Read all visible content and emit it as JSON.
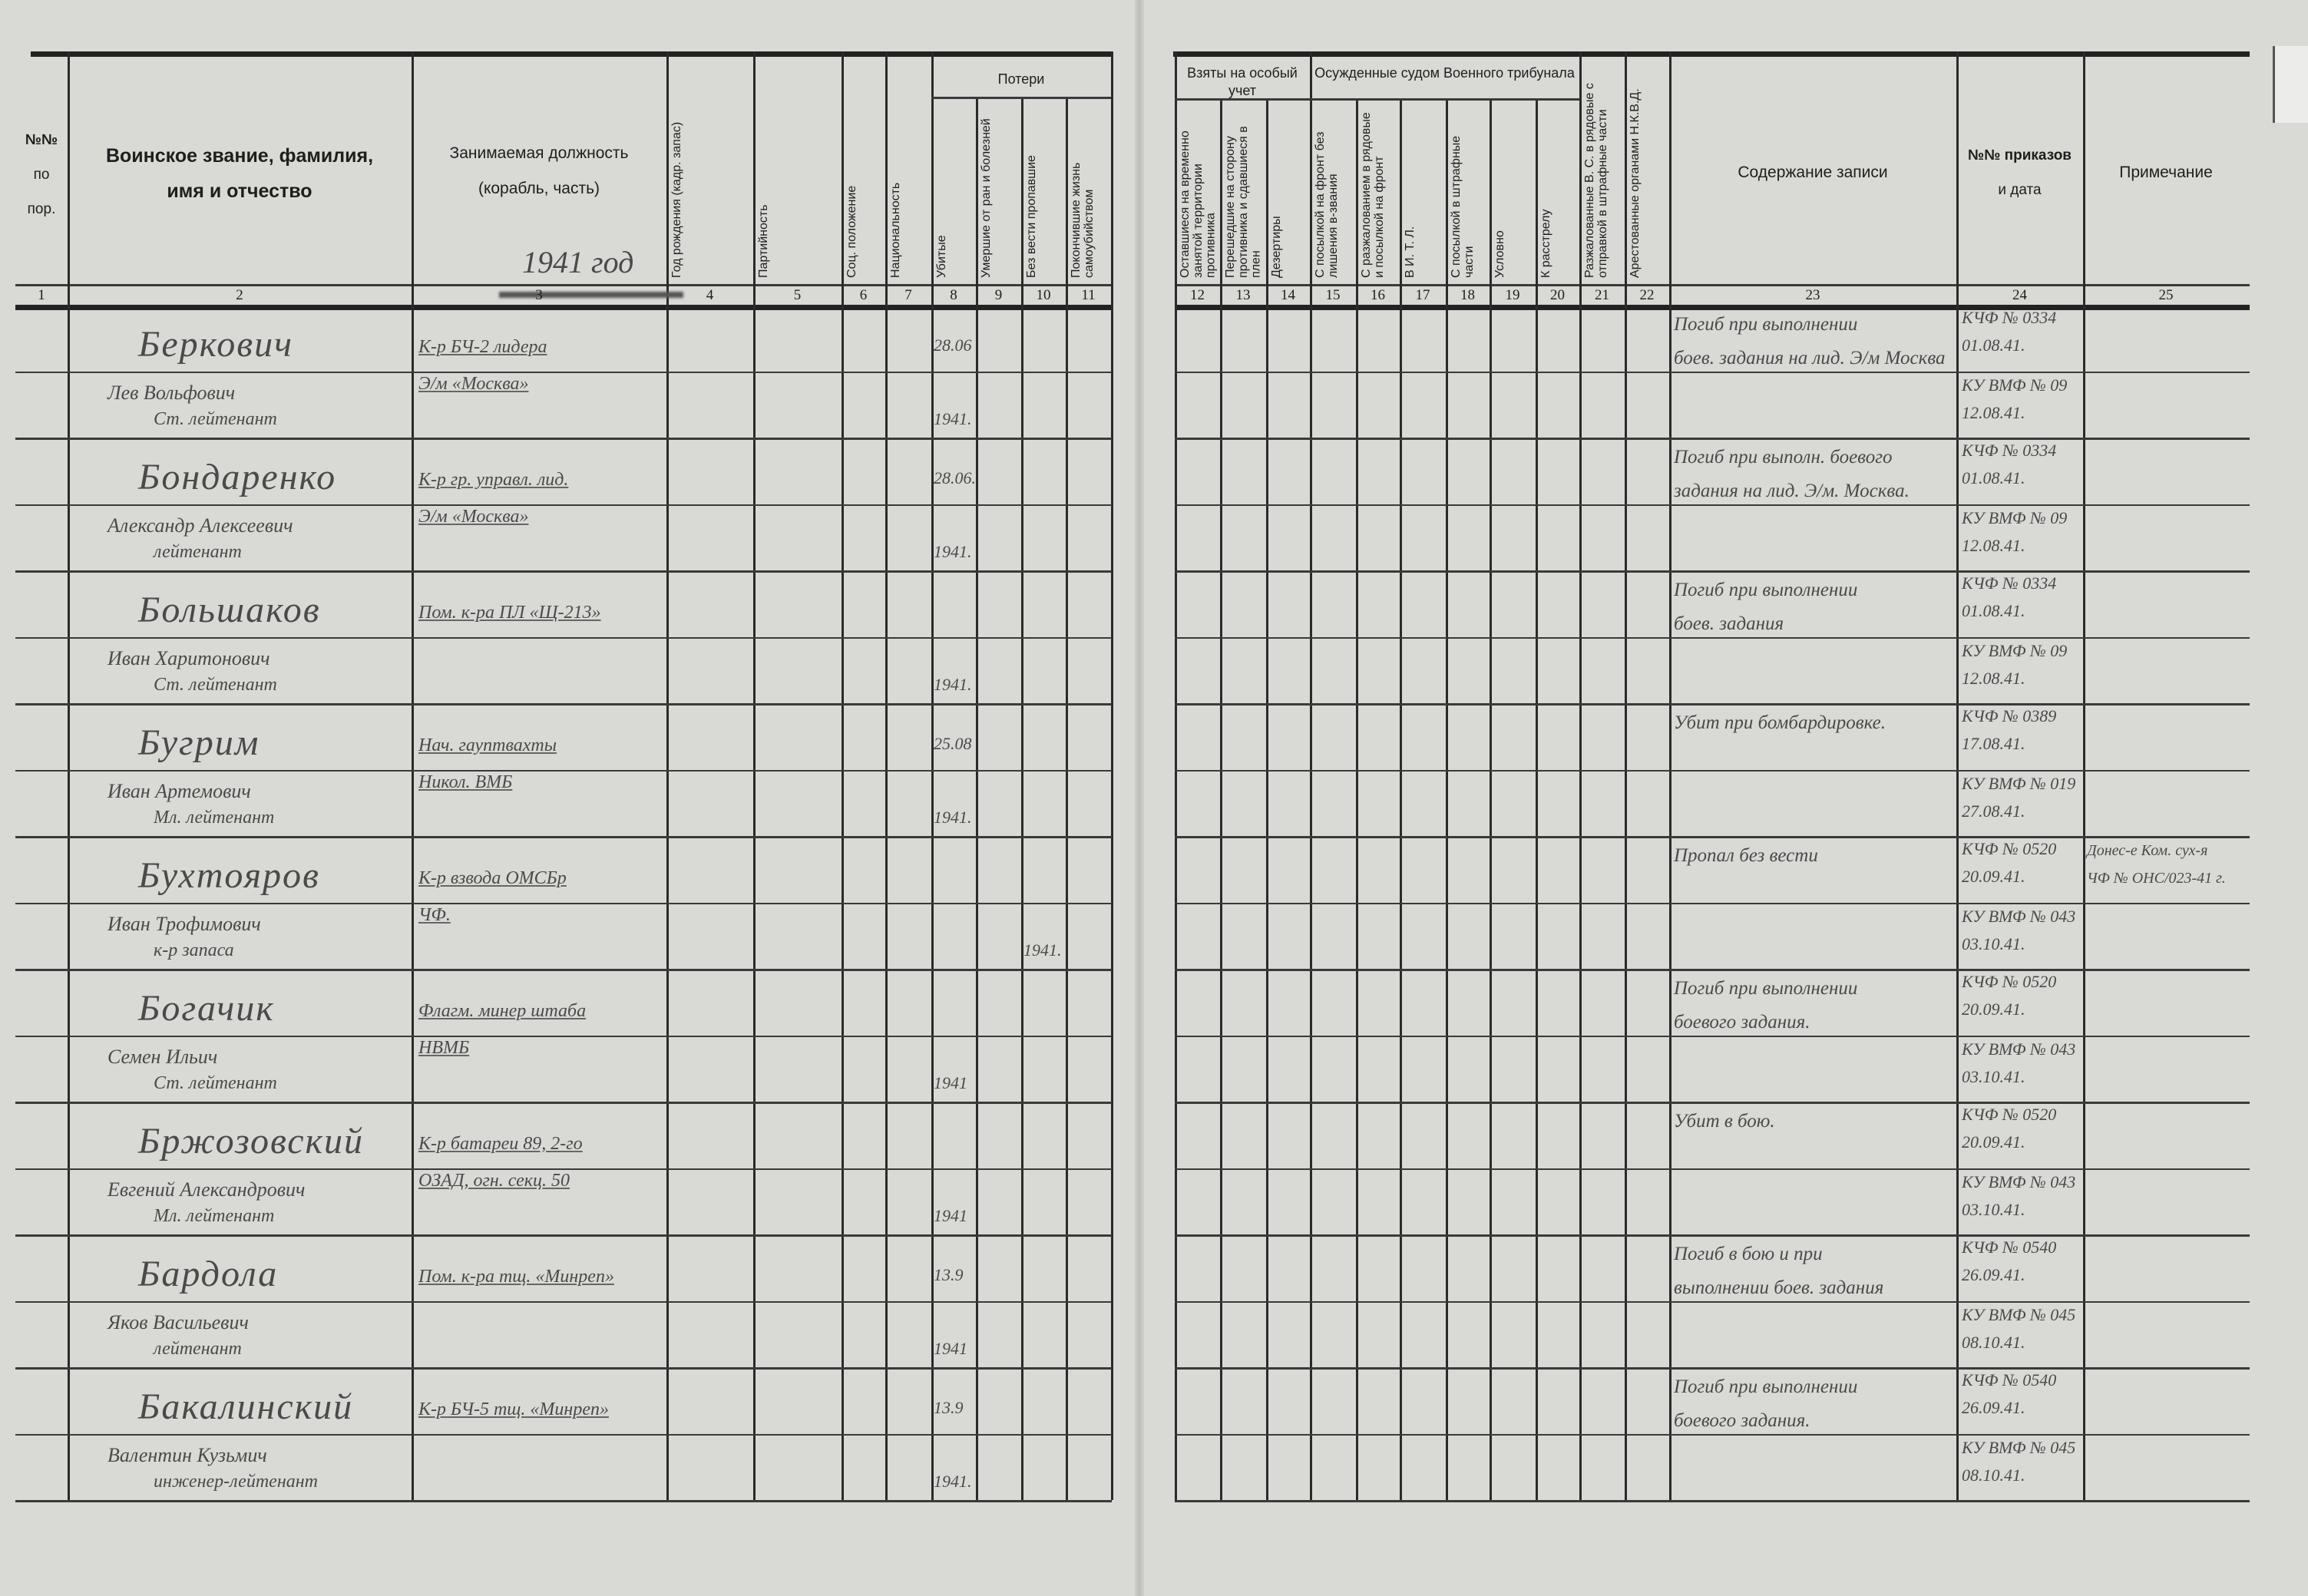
{
  "header": {
    "col1": [
      "№№",
      "по",
      "пор."
    ],
    "col2": [
      "Воинское звание, фамилия,",
      "имя и отчество"
    ],
    "col3": [
      "Занимаемая должность",
      "(корабль, часть)"
    ],
    "year_stamp": "1941 год",
    "col4": "Год рождения (кадр. запас)",
    "col5": "Партийность",
    "col6": "Соц. положение",
    "col7": "Национальность",
    "group_losses": "Потери",
    "col8": "Убитые",
    "col9": "Умершие от ран и болезней",
    "col10": "Без вести пропавшие",
    "col11": "Покончившие жизнь самоубийством",
    "group_special": "Взяты на особый учет",
    "col12": "Оставшиеся на временно занятой территории противника",
    "col13": "Перешедшие на сторону противника и сдавшиеся в плен",
    "col14": "Дезертиры",
    "group_tribunal": "Осужденные судом Военного трибунала",
    "col15": "С посылкой на фронт без лишения в-звания",
    "col16": "С разжалованием в рядовые и посылкой на фронт",
    "col17": "В И. Т. Л.",
    "col18": "С посылкой в штрафные части",
    "col19": "Условно",
    "col20": "К расстрелу",
    "col21": "Разжалованные В. С. в рядовые с отправкой в штрафные части",
    "col22": "Арестованные органами Н.К.В.Д.",
    "col23": "Содержание записи",
    "col24": [
      "№№ приказов",
      "и дата"
    ],
    "col25": "Примечание",
    "numbers": [
      "1",
      "2",
      "3",
      "4",
      "5",
      "6",
      "7",
      "8",
      "9",
      "10",
      "11",
      "12",
      "13",
      "14",
      "15",
      "16",
      "17",
      "18",
      "19",
      "20",
      "21",
      "22",
      "23",
      "24",
      "25"
    ]
  },
  "rows": [
    {
      "surname": "Беркович",
      "name": "Лев Вольфович",
      "rank": "Ст. лейтенант",
      "position": [
        "К-р БЧ-2 лидера",
        "Э/м «Москва»"
      ],
      "loss_col": 8,
      "loss": [
        "28.06",
        "1941."
      ],
      "content": [
        "Погиб при выполнении",
        "боев. задания на лид. Э/м Москва"
      ],
      "order1": [
        "КЧФ № 0334",
        "01.08.41."
      ],
      "order2": [
        "КУ ВМФ № 09",
        "12.08.41."
      ],
      "note": []
    },
    {
      "surname": "Бондаренко",
      "name": "Александр Алексеевич",
      "rank": "лейтенант",
      "position": [
        "К-р гр. управл. лид.",
        "Э/м «Москва»"
      ],
      "loss_col": 8,
      "loss": [
        "28.06.",
        "1941."
      ],
      "content": [
        "Погиб при выполн. боевого",
        "задания на лид. Э/м. Москва."
      ],
      "order1": [
        "КЧФ № 0334",
        "01.08.41."
      ],
      "order2": [
        "КУ ВМФ № 09",
        "12.08.41."
      ],
      "note": []
    },
    {
      "surname": "Большаков",
      "name": "Иван Харитонович",
      "rank": "Ст. лейтенант",
      "position": [
        "Пом. к-ра ПЛ «Щ-213»",
        ""
      ],
      "loss_col": 8,
      "loss": [
        "",
        "1941."
      ],
      "content": [
        "Погиб при выполнении",
        "боев. задания"
      ],
      "order1": [
        "КЧФ № 0334",
        "01.08.41."
      ],
      "order2": [
        "КУ ВМФ № 09",
        "12.08.41."
      ],
      "note": []
    },
    {
      "surname": "Бугрим",
      "name": "Иван Артемович",
      "rank": "Мл. лейтенант",
      "position": [
        "Нач. гауптвахты",
        "Никол. ВМБ"
      ],
      "loss_col": 8,
      "loss": [
        "25.08",
        "1941."
      ],
      "content": [
        "Убит при бомбардировке.",
        ""
      ],
      "order1": [
        "КЧФ № 0389",
        "17.08.41."
      ],
      "order2": [
        "КУ ВМФ № 019",
        "27.08.41."
      ],
      "note": []
    },
    {
      "surname": "Бухтояров",
      "name": "Иван Трофимович",
      "rank": "к-р запаса",
      "position": [
        "К-р взвода ОМСБр",
        "ЧФ."
      ],
      "loss_col": 10,
      "loss": [
        "",
        "1941."
      ],
      "content": [
        "Пропал без вести",
        ""
      ],
      "order1": [
        "КЧФ № 0520",
        "20.09.41."
      ],
      "order2": [
        "КУ ВМФ № 043",
        "03.10.41."
      ],
      "note": [
        "Донес-е Ком. сух-я",
        "ЧФ № ОНС/023-41 г."
      ]
    },
    {
      "surname": "Богачик",
      "name": "Семен Ильич",
      "rank": "Ст. лейтенант",
      "position": [
        "Флагм. минер штаба",
        "НВМБ"
      ],
      "loss_col": 8,
      "loss": [
        "",
        "1941"
      ],
      "content": [
        "Погиб при выполнении",
        "боевого задания."
      ],
      "order1": [
        "КЧФ № 0520",
        "20.09.41."
      ],
      "order2": [
        "КУ ВМФ № 043",
        "03.10.41."
      ],
      "note": []
    },
    {
      "surname": "Бржозовский",
      "name": "Евгений Александрович",
      "rank": "Мл. лейтенант",
      "position": [
        "К-р батареи 89, 2-го",
        "ОЗАД, огн. секц. 50"
      ],
      "loss_col": 8,
      "loss": [
        "",
        "1941"
      ],
      "content": [
        "Убит в бою.",
        ""
      ],
      "order1": [
        "КЧФ № 0520",
        "20.09.41."
      ],
      "order2": [
        "КУ ВМФ № 043",
        "03.10.41."
      ],
      "note": []
    },
    {
      "surname": "Бардола",
      "name": "Яков Васильевич",
      "rank": "лейтенант",
      "position": [
        "Пом. к-ра тщ. «Минреп»",
        ""
      ],
      "loss_col": 8,
      "loss": [
        "13.9",
        "1941"
      ],
      "content": [
        "Погиб в бою и при",
        "выполнении боев. задания"
      ],
      "order1": [
        "КЧФ № 0540",
        "26.09.41."
      ],
      "order2": [
        "КУ ВМФ № 045",
        "08.10.41."
      ],
      "note": []
    },
    {
      "surname": "Бакалинский",
      "name": "Валентин Кузьмич",
      "rank": "инженер-лейтенант",
      "position": [
        "К-р БЧ-5 тщ. «Минреп»",
        ""
      ],
      "loss_col": 8,
      "loss": [
        "13.9",
        "1941."
      ],
      "content": [
        "Погиб при выполнении",
        "боевого задания."
      ],
      "order1": [
        "КЧФ № 0540",
        "26.09.41."
      ],
      "order2": [
        "КУ ВМФ № 045",
        "08.10.41."
      ],
      "note": []
    }
  ],
  "colors": {
    "paper": "#d9d9d6",
    "ink_print": "#1e1e1e",
    "ink_hand": "#4a4a4a"
  }
}
